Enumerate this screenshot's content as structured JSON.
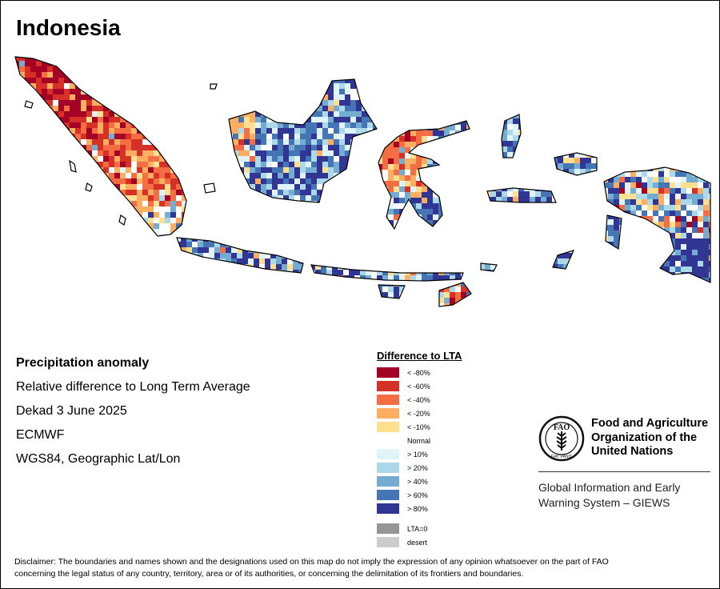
{
  "title": "Indonesia",
  "info": {
    "heading": "Precipitation anomaly",
    "line1": "Relative difference to Long Term Average",
    "line2": "Dekad 3 June 2025",
    "line3": "ECMWF",
    "line4": "WGS84, Geographic Lat/Lon"
  },
  "legend": {
    "title": "Difference to LTA",
    "items": [
      {
        "label": "< -80%",
        "color": "#a50026"
      },
      {
        "label": "< -60%",
        "color": "#d73027"
      },
      {
        "label": "< -40%",
        "color": "#f46d43"
      },
      {
        "label": "< -20%",
        "color": "#fdae61"
      },
      {
        "label": "< -10%",
        "color": "#fee090"
      },
      {
        "label": "Normal",
        "color": "#ffffff"
      },
      {
        "label": "> 10%",
        "color": "#e0f3f8"
      },
      {
        "label": "> 20%",
        "color": "#abd9e9"
      },
      {
        "label": "> 40%",
        "color": "#74add1"
      },
      {
        "label": "> 60%",
        "color": "#4575b4"
      },
      {
        "label": "> 80%",
        "color": "#313695"
      }
    ],
    "extra": [
      {
        "label": "LTA=0",
        "color": "#969696"
      },
      {
        "label": "desert",
        "color": "#cccccc"
      }
    ]
  },
  "fao": {
    "name_line1": "Food and Agriculture",
    "name_line2": "Organization of the",
    "name_line3": "United Nations",
    "system_line1": "Global Information and Early",
    "system_line2": "Warning System – GIEWS",
    "logo_letters": "FAO",
    "logo_motto": "FIAT PANIS"
  },
  "disclaimer_line1": "Disclaimer: The boundaries and names shown and the designations used on this map do not imply the expression of any opinion whatsoever on the part of FAO",
  "disclaimer_line2": "concerning the legal status of any country, territory, area or of its authorities, or concerning the delimitation of its frontiers and boundaries."
}
